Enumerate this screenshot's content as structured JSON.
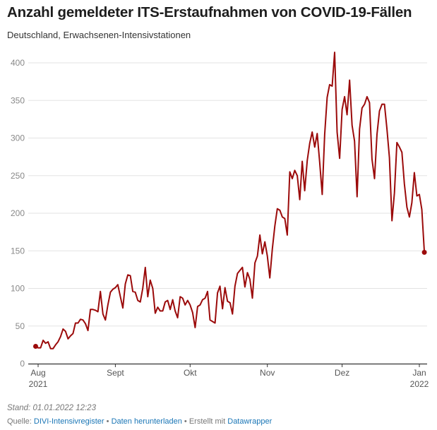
{
  "title": "Anzahl gemeldeter ITS-Erstaufnahmen von COVID-19-Fällen",
  "subtitle": "Deutschland, Erwachsenen-Intensivstationen",
  "footer": {
    "stand": "Stand: 01.01.2022 12:23",
    "source_label": "Quelle:",
    "source_link": "DIVI-Intensivregister",
    "sep": "•",
    "download_link": "Daten herunterladen",
    "made_with": "Erstellt mit",
    "datawrapper_link": "Datawrapper"
  },
  "chart_data": {
    "type": "line",
    "color": "#9b0a0a",
    "ylim": [
      0,
      400
    ],
    "yticks": [
      0,
      50,
      100,
      150,
      200,
      250,
      300,
      350,
      400
    ],
    "xticks": [
      {
        "date": "2021-08-01",
        "label": "Aug",
        "sub": "2021"
      },
      {
        "date": "2021-09-01",
        "label": "Sept",
        "sub": ""
      },
      {
        "date": "2021-10-01",
        "label": "Okt",
        "sub": ""
      },
      {
        "date": "2021-11-01",
        "label": "Nov",
        "sub": ""
      },
      {
        "date": "2021-12-01",
        "label": "Dez",
        "sub": ""
      },
      {
        "date": "2022-01-01",
        "label": "Jan",
        "sub": "2022"
      }
    ],
    "grid": true,
    "x_start": "2021-07-31",
    "x_end": "2022-01-01",
    "values": [
      23,
      21,
      21,
      31,
      27,
      29,
      20,
      20,
      25,
      29,
      36,
      46,
      43,
      33,
      37,
      40,
      54,
      54,
      59,
      58,
      53,
      44,
      72,
      72,
      71,
      69,
      96,
      66,
      58,
      78,
      95,
      99,
      101,
      105,
      89,
      74,
      106,
      118,
      117,
      96,
      95,
      84,
      82,
      100,
      128,
      89,
      111,
      100,
      67,
      75,
      70,
      70,
      82,
      84,
      72,
      85,
      70,
      61,
      89,
      87,
      78,
      84,
      78,
      68,
      48,
      76,
      78,
      85,
      87,
      96,
      58,
      56,
      54,
      94,
      103,
      73,
      101,
      83,
      81,
      66,
      103,
      120,
      124,
      128,
      102,
      121,
      112,
      87,
      134,
      143,
      171,
      146,
      162,
      143,
      114,
      153,
      183,
      206,
      204,
      195,
      193,
      171,
      255,
      246,
      257,
      250,
      218,
      269,
      230,
      270,
      293,
      308,
      288,
      306,
      268,
      225,
      305,
      354,
      371,
      369,
      414,
      308,
      273,
      338,
      355,
      331,
      377,
      317,
      296,
      222,
      312,
      340,
      345,
      355,
      347,
      272,
      246,
      305,
      336,
      345,
      345,
      312,
      274,
      190,
      227,
      294,
      288,
      281,
      239,
      208,
      195,
      214,
      254,
      223,
      225,
      205,
      148
    ]
  }
}
